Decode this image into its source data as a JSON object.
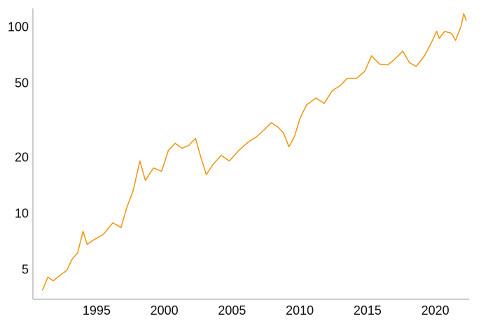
{
  "chart_data": {
    "type": "line",
    "log_y": true,
    "grid": false,
    "xlim": [
      1990.3,
      2022.5
    ],
    "xticks": [
      1995,
      2000,
      2005,
      2010,
      2015,
      2020
    ],
    "ylim": [
      3.5,
      127
    ],
    "yticks": [
      5,
      10,
      20,
      50,
      100
    ],
    "x": [
      1991.0,
      1991.4,
      1991.8,
      1992.3,
      1992.8,
      1993.2,
      1993.6,
      1994.0,
      1994.3,
      1994.8,
      1995.5,
      1996.2,
      1996.8,
      1997.2,
      1997.7,
      1998.2,
      1998.6,
      1999.2,
      1999.8,
      2000.3,
      2000.8,
      2001.3,
      2001.8,
      2002.3,
      2002.7,
      2003.1,
      2003.6,
      2004.2,
      2004.8,
      2005.5,
      2006.2,
      2006.8,
      2007.4,
      2007.9,
      2008.4,
      2008.8,
      2009.2,
      2009.6,
      2010.0,
      2010.5,
      2011.2,
      2011.8,
      2012.4,
      2013.0,
      2013.5,
      2014.2,
      2014.8,
      2015.3,
      2015.9,
      2016.5,
      2017.0,
      2017.6,
      2018.1,
      2018.6,
      2019.2,
      2019.7,
      2020.1,
      2020.3,
      2020.7,
      2021.2,
      2021.5,
      2021.9,
      2022.1,
      2022.3
    ],
    "series": [
      {
        "color": "#ee9a18",
        "values": [
          3.9,
          4.6,
          4.4,
          4.7,
          5.0,
          5.75,
          6.2,
          8.1,
          6.9,
          7.3,
          7.8,
          9.0,
          8.5,
          10.7,
          13.4,
          19.3,
          15.2,
          17.7,
          17.0,
          22,
          24,
          22.6,
          23.4,
          25.5,
          20.2,
          16.3,
          18.5,
          20.7,
          19.3,
          22,
          24.4,
          26,
          28.5,
          31,
          29.3,
          27.3,
          23,
          26,
          32.5,
          38.6,
          42,
          39.3,
          46,
          49,
          53.6,
          53.6,
          58.5,
          70.7,
          63.8,
          63.2,
          67.7,
          75,
          64.9,
          62.1,
          70.7,
          82.7,
          95.7,
          87.8,
          95.7,
          93.3,
          85.6,
          101.7,
          119,
          109
        ]
      }
    ]
  }
}
